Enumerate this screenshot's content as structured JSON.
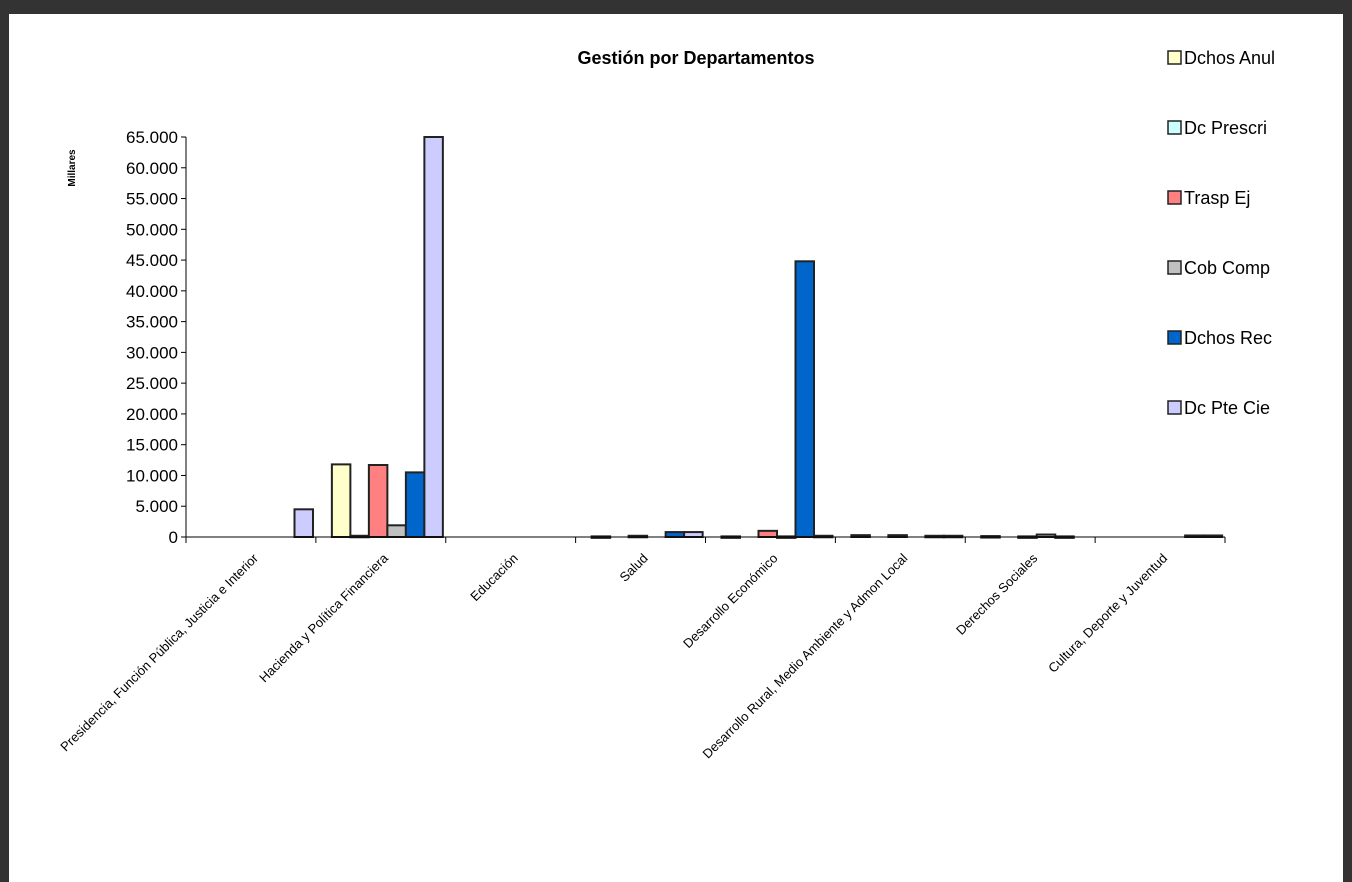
{
  "chart_data": {
    "type": "bar",
    "title": "Gestión por Departamentos",
    "ylabel": "Millares",
    "xlabel": "",
    "ylim": [
      0,
      65000
    ],
    "yticks": [
      "0",
      "5.000",
      "10.000",
      "15.000",
      "20.000",
      "25.000",
      "30.000",
      "35.000",
      "40.000",
      "45.000",
      "50.000",
      "55.000",
      "60.000",
      "65.000"
    ],
    "categories": [
      "Presidencia, Función Pública, Justicia  e Interior",
      "Hacienda y Política  Financiera",
      "Educación",
      "Salud",
      "Desarrollo Económico",
      "Desarrollo Rural, Medio Ambiente  y Admon Local",
      "Derechos Sociales",
      "Cultura, Deporte y Juventud"
    ],
    "series": [
      {
        "name": "Dchos Anul",
        "color": "#FFFFCC",
        "values": [
          0,
          11800,
          0,
          100,
          100,
          300,
          150,
          0
        ]
      },
      {
        "name": "Dc Prescri",
        "color": "#CCFFFF",
        "values": [
          0,
          200,
          0,
          0,
          0,
          0,
          0,
          0
        ]
      },
      {
        "name": "Trasp Ej",
        "color": "#FF8080",
        "values": [
          0,
          11700,
          0,
          200,
          1000,
          300,
          100,
          0
        ]
      },
      {
        "name": "Cob Comp",
        "color": "#C0C0C0",
        "values": [
          0,
          1900,
          0,
          0,
          100,
          0,
          400,
          0
        ]
      },
      {
        "name": "Dchos Rec",
        "color": "#0066CC",
        "values": [
          0,
          10500,
          0,
          800,
          44800,
          200,
          100,
          250
        ]
      },
      {
        "name": "Dc Pte Cie",
        "color": "#CCCCFF",
        "values": [
          4500,
          66000,
          0,
          800,
          200,
          200,
          0,
          250
        ]
      }
    ],
    "grid": false,
    "legend_position": "right"
  }
}
